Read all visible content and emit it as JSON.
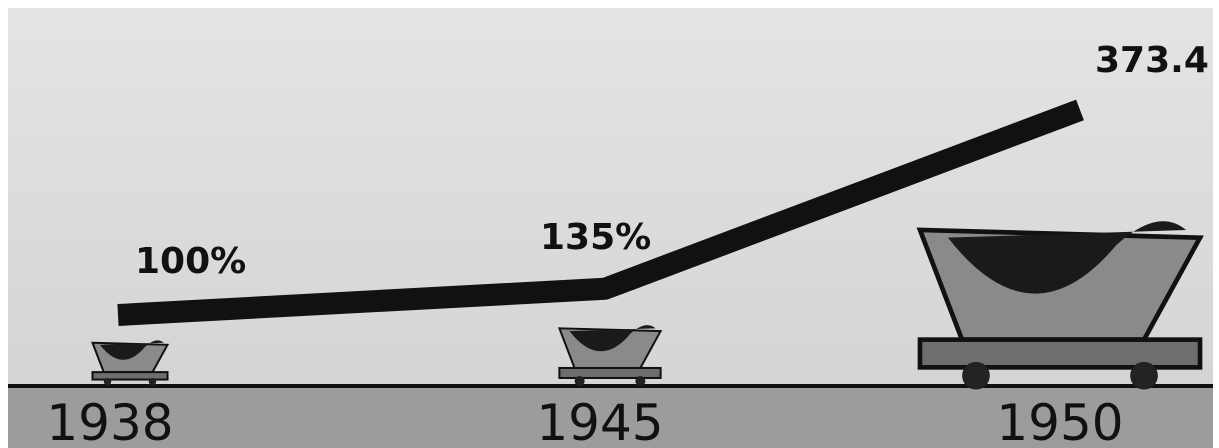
{
  "chart_data": {
    "type": "line",
    "categories": [
      "1938",
      "1945",
      "1950"
    ],
    "values": [
      100,
      135,
      373.4
    ],
    "value_labels": [
      "100%",
      "135%",
      "373.4"
    ],
    "color": "#111111"
  }
}
